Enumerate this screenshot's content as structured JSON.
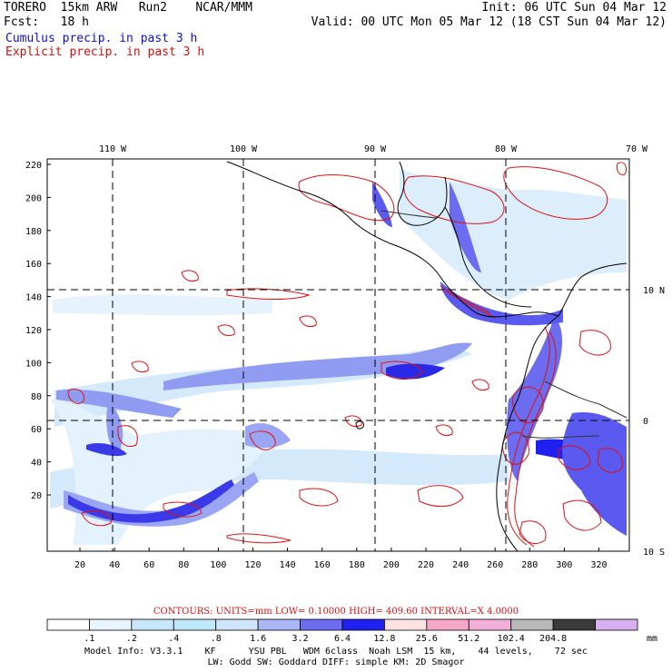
{
  "header": {
    "line1_left": "TORERO  15km ARW   Run2    NCAR/MMM",
    "line1_right": "Init: 06 UTC Sun 04 Mar 12",
    "line2_left": "Fcst:   18 h",
    "line2_right": "Valid: 00 UTC Mon 05 Mar 12 (18 CST Sun 04 Mar 12)",
    "cumulus_label": "Cumulus precip. in past 3 h",
    "explicit_label": "Explicit precip. in past 3 h"
  },
  "map": {
    "top_lon_labels": [
      "110 W",
      "100 W",
      "90 W",
      "80 W",
      "70 W"
    ],
    "right_lat_labels": [
      "10 N",
      "0",
      "10 S"
    ],
    "left_y_ticks": [
      "220",
      "200",
      "180",
      "160",
      "140",
      "120",
      "100",
      "80",
      "60",
      "40",
      "20"
    ],
    "bottom_x_ticks": [
      "20",
      "40",
      "60",
      "80",
      "100",
      "120",
      "140",
      "160",
      "180",
      "200",
      "220",
      "240",
      "260",
      "280",
      "300",
      "320"
    ],
    "colors": {
      "light_blue": "#cfe8fb",
      "mid_blue": "#8f9cf2",
      "blue": "#5a5af0",
      "dark_blue": "#1010e0",
      "navy": "#101080",
      "red_contour": "#e01010",
      "coast": "#000000"
    }
  },
  "contours": {
    "text": "CONTOURS:  UNITS=mm  LOW= 0.10000      HIGH=  409.60      INTERVAL=X  4.0000"
  },
  "color_bar": {
    "bins": [
      "#ffffff",
      "#e8f5fe",
      "#c8e6fa",
      "#bfe8fb",
      "#d0e4fa",
      "#aab6f5",
      "#6b6cf0",
      "#2020f0",
      "#fce2e2",
      "#f7a8c8",
      "#f0b0d8",
      "#b8b8b8",
      "#3a3a3a",
      "#d8b0f0"
    ],
    "labels": [
      ".1",
      ".2",
      ".4",
      ".8",
      "1.6",
      "3.2",
      "6.4",
      "12.8",
      "25.6",
      "51.2",
      "102.4",
      "204.8"
    ],
    "unit": "mm"
  },
  "footer": {
    "line1": "Model Info: V3.3.1    KF      YSU PBL   WDM 6class  Noah LSM  15 km,    44 levels,    72 sec",
    "line2": "LW: Godd SW: Goddard DIFF: simple KM: 2D Smagor"
  }
}
